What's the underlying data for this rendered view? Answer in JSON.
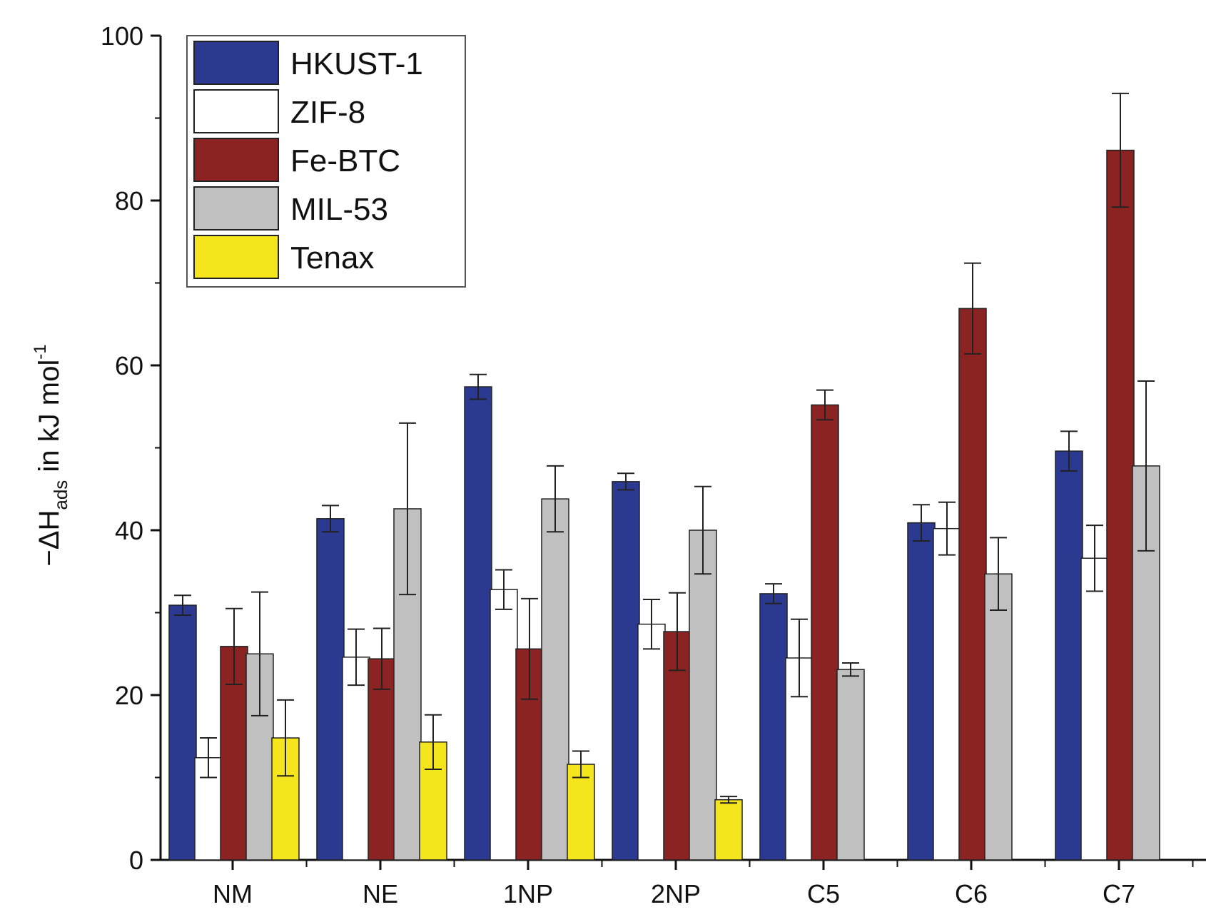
{
  "chart_data": {
    "type": "bar",
    "title": "",
    "xlabel": "",
    "ylabel": {
      "prefix": "−ΔH",
      "subscript": "ads",
      "middle": " in kJ mol",
      "superscript": "-1"
    },
    "ylim": [
      0,
      100
    ],
    "yticks": [
      0,
      20,
      40,
      60,
      80,
      100
    ],
    "ytick_labels": [
      "0",
      "20",
      "40",
      "60",
      "80",
      "100"
    ],
    "legend_position": "top-left",
    "categories": [
      "NM",
      "NE",
      "1NP",
      "2NP",
      "C5",
      "C6",
      "C7"
    ],
    "series": [
      {
        "name": "HKUST-1",
        "color": "#2b3990",
        "values": [
          30.9,
          41.4,
          57.4,
          45.9,
          32.3,
          40.9,
          49.6
        ],
        "errors": [
          1.2,
          1.6,
          1.5,
          1.0,
          1.2,
          2.2,
          2.4
        ]
      },
      {
        "name": "ZIF-8",
        "color": "#ffffff",
        "values": [
          12.4,
          24.6,
          32.8,
          28.6,
          24.5,
          40.2,
          36.6
        ],
        "errors": [
          2.4,
          3.4,
          2.4,
          3.0,
          4.7,
          3.2,
          4.0
        ]
      },
      {
        "name": "Fe-BTC",
        "color": "#8b2323",
        "values": [
          25.9,
          24.4,
          25.6,
          27.7,
          55.2,
          66.9,
          86.1
        ],
        "errors": [
          4.6,
          3.7,
          6.1,
          4.7,
          1.8,
          5.5,
          6.9
        ]
      },
      {
        "name": "MIL-53",
        "color": "#c0c0c0",
        "values": [
          25.0,
          42.6,
          43.8,
          40.0,
          23.1,
          34.7,
          47.8
        ],
        "errors": [
          7.5,
          10.4,
          4.0,
          5.3,
          0.8,
          4.4,
          10.3
        ]
      },
      {
        "name": "Tenax",
        "color": "#f5e51c",
        "values": [
          14.8,
          14.3,
          11.6,
          7.3,
          null,
          null,
          null
        ],
        "errors": [
          4.6,
          3.3,
          1.6,
          0.4,
          null,
          null,
          null
        ]
      }
    ]
  }
}
